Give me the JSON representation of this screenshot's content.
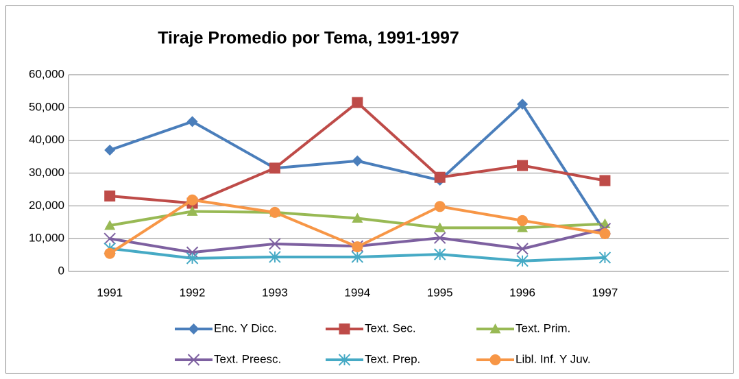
{
  "chart_data": {
    "type": "line",
    "title": "Tiraje Promedio por Tema, 1991-1997",
    "categories": [
      "1991",
      "1992",
      "1993",
      "1994",
      "1995",
      "1996",
      "1997",
      null
    ],
    "ylim": [
      0,
      60000
    ],
    "yticks": [
      0,
      {
        "value": 10000,
        "label": "10,000"
      },
      {
        "value": 20000,
        "label": "20,000"
      },
      {
        "value": 30000,
        "label": "30,000"
      },
      {
        "value": 40000,
        "label": "40,000"
      },
      {
        "value": 50000,
        "label": "50,000"
      },
      {
        "value": 60000,
        "label": "60,000"
      }
    ],
    "grid": true,
    "legend": "bottom",
    "series": [
      {
        "name": "Enc. Y Dicc.",
        "color": "#4a7ebb",
        "marker": "diamond",
        "values": [
          37000,
          45700,
          31500,
          33700,
          27800,
          51000,
          12000,
          null
        ]
      },
      {
        "name": "Text. Sec.",
        "color": "#be4b48",
        "marker": "square",
        "values": [
          23000,
          20800,
          31500,
          51500,
          28700,
          32300,
          27700,
          null
        ]
      },
      {
        "name": "Text. Prim.",
        "color": "#98b954",
        "marker": "triangle",
        "values": [
          14000,
          18300,
          18000,
          16200,
          13300,
          13300,
          14500,
          null
        ]
      },
      {
        "name": "Text. Preesc.",
        "color": "#7d60a0",
        "marker": "x",
        "values": [
          10000,
          5800,
          8400,
          7700,
          10200,
          6900,
          13000,
          null
        ]
      },
      {
        "name": "Text. Prep.",
        "color": "#46aac5",
        "marker": "star",
        "values": [
          7000,
          4000,
          4400,
          4400,
          5200,
          3200,
          4200,
          null
        ]
      },
      {
        "name": "Libl. Inf. Y Juv.",
        "color": "#f79646",
        "marker": "circle",
        "values": [
          5500,
          21800,
          18000,
          7500,
          19800,
          15500,
          11500,
          null
        ]
      }
    ]
  }
}
